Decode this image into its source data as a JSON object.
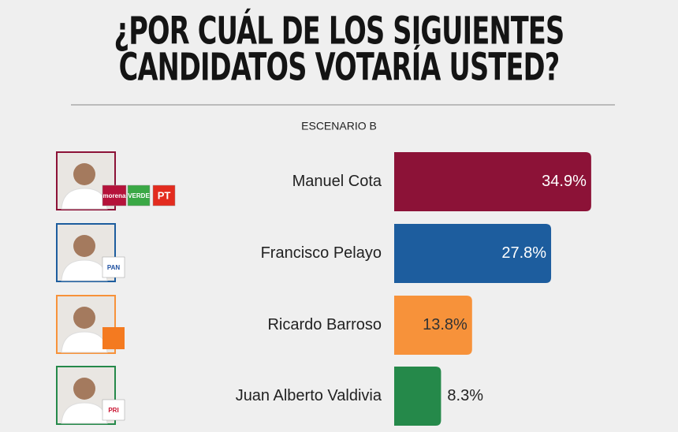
{
  "chart_data": {
    "type": "hbar",
    "title": [
      "¿POR CUÁL DE LOS SIGUIENTES",
      "CANDIDATOS VOTARÍA USTED?"
    ],
    "subtitle": "ESCENARIO B",
    "categories": [
      "Manuel Cota",
      "Francisco Pelayo",
      "Ricardo Barroso",
      "Juan Alberto Valdivia"
    ],
    "values": [
      34.9,
      27.8,
      13.8,
      8.3
    ],
    "value_labels": [
      "34.9%",
      "27.8%",
      "13.8%",
      "8.3%"
    ],
    "colors": [
      "#8c1237",
      "#1d5d9e",
      "#f7923a",
      "#25894a"
    ],
    "parties": [
      [
        "morena",
        "VERDE",
        "PT"
      ],
      [
        "PAN"
      ],
      [],
      [
        "PRI"
      ]
    ],
    "xlim": [
      0,
      50
    ]
  }
}
